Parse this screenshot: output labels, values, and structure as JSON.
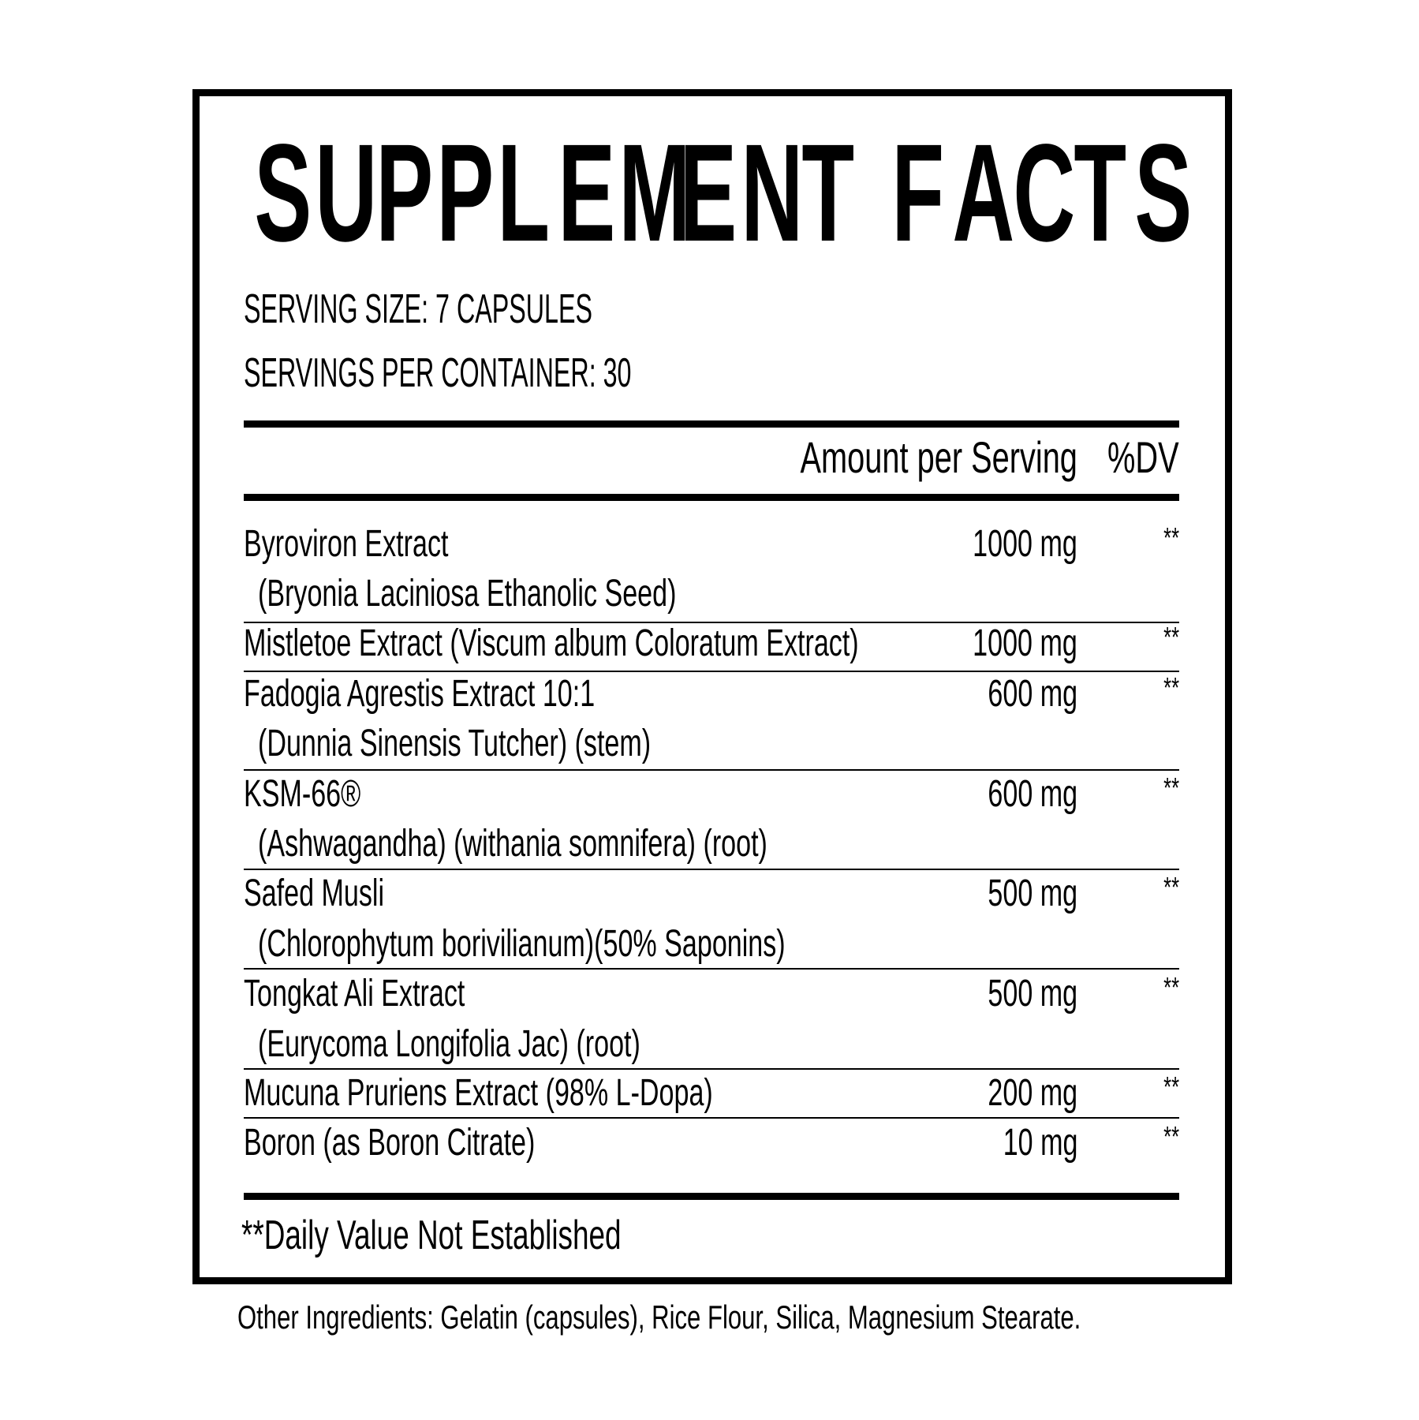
{
  "title": "SUPPLEMENT FACTS",
  "serving_size": "SERVING SIZE: 7 CAPSULES",
  "servings_per_container": "SERVINGS PER CONTAINER: 30",
  "header": {
    "amount": "Amount per Serving",
    "dv": "%DV"
  },
  "ingredients": [
    {
      "name": "Byroviron Extract",
      "detail": "(Bryonia Laciniosa Ethanolic Seed)",
      "amount": "1000 mg",
      "dv": "**"
    },
    {
      "name": "Mistletoe Extract (Viscum album Coloratum Extract)",
      "amount": "1000 mg",
      "dv": "**"
    },
    {
      "name": "Fadogia Agrestis Extract 10:1",
      "detail": "(Dunnia Sinensis Tutcher) (stem)",
      "amount": "600 mg",
      "dv": "**"
    },
    {
      "name": "KSM-66®",
      "detail": "(Ashwagandha) (withania somnifera) (root)",
      "amount": "600 mg",
      "dv": "**"
    },
    {
      "name": "Safed Musli",
      "detail": "(Chlorophytum borivilianum)(50% Saponins)",
      "amount": "500 mg",
      "dv": "**"
    },
    {
      "name": "Tongkat Ali Extract",
      "detail": "(Eurycoma Longifolia Jac) (root)",
      "amount": "500 mg",
      "dv": "**"
    },
    {
      "name": "Mucuna Pruriens Extract (98% L-Dopa)",
      "amount": "200 mg",
      "dv": "**"
    },
    {
      "name": "Boron (as Boron Citrate)",
      "amount": "10 mg",
      "dv": "**"
    }
  ],
  "footnote": "**Daily Value Not Established",
  "other_ingredients": "Other Ingredients: Gelatin (capsules), Rice Flour, Silica, Magnesium Stearate."
}
